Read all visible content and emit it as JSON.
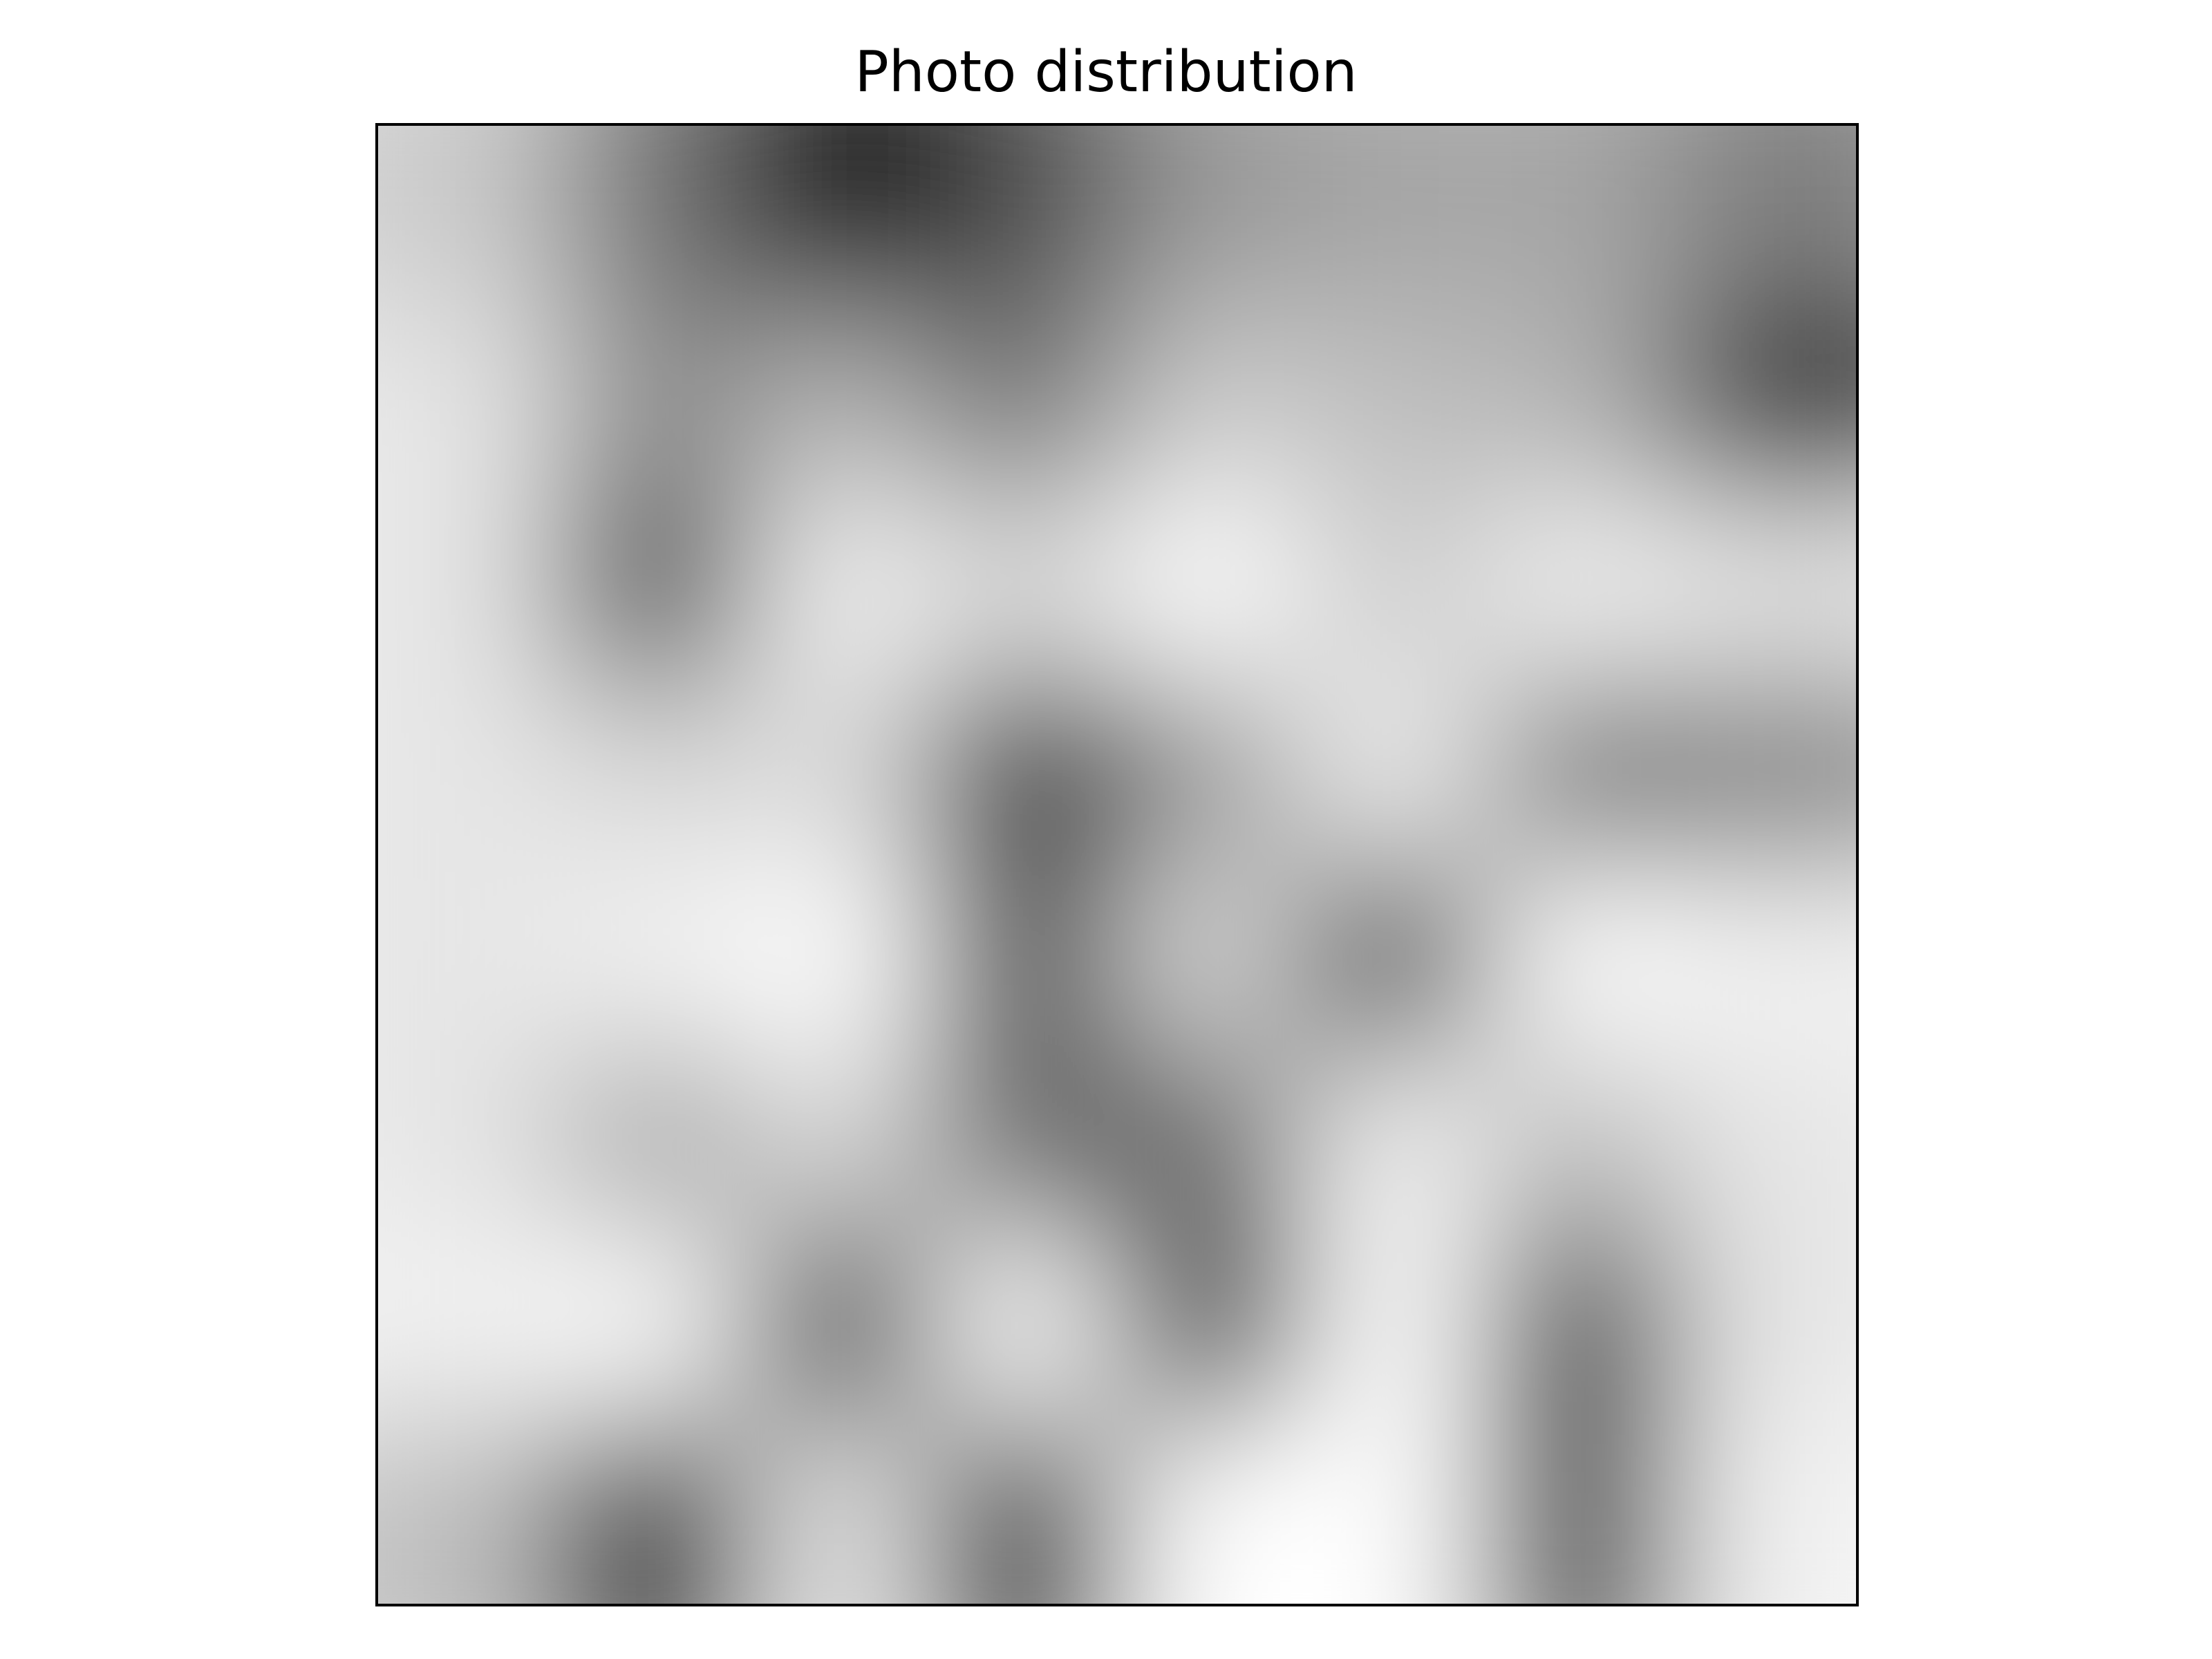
{
  "chart_data": {
    "type": "heatmap",
    "title": "Photo distribution",
    "xlabel": "",
    "ylabel": "",
    "colormap": "gray_r",
    "low_color": "#ffffff",
    "high_color": "#000000",
    "axis_ticks": false,
    "grid": false,
    "legend": "none",
    "rows": 8,
    "cols": 8,
    "values": [
      [
        0.2,
        0.55,
        1.0,
        0.7,
        0.4,
        0.35,
        0.35,
        0.5
      ],
      [
        0.1,
        0.45,
        0.3,
        0.55,
        0.2,
        0.25,
        0.3,
        0.85
      ],
      [
        0.1,
        0.8,
        0.05,
        0.15,
        0.0,
        0.2,
        0.05,
        0.1
      ],
      [
        0.1,
        0.15,
        0.15,
        0.85,
        0.4,
        0.05,
        0.55,
        0.5
      ],
      [
        0.1,
        0.05,
        0.0,
        0.75,
        0.15,
        0.85,
        0.0,
        0.05
      ],
      [
        0.1,
        0.35,
        0.15,
        0.6,
        0.6,
        0.05,
        0.25,
        0.1
      ],
      [
        0.05,
        0.0,
        1.0,
        0.0,
        0.9,
        0.0,
        0.8,
        0.1
      ],
      [
        0.25,
        1.0,
        0.1,
        1.0,
        0.0,
        0.0,
        0.8,
        0.05
      ]
    ]
  }
}
